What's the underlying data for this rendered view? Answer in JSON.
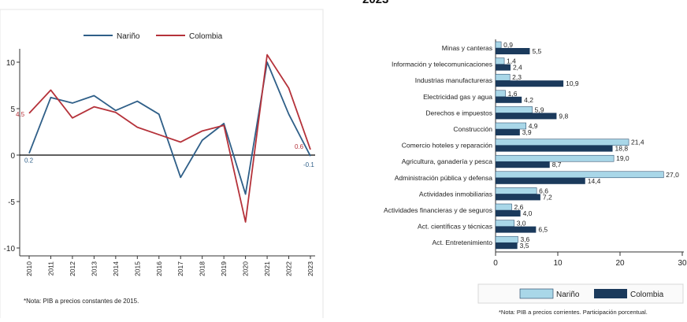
{
  "chart_data": [
    {
      "type": "line",
      "x": [
        "2010",
        "2011",
        "2012",
        "2013",
        "2014",
        "2015",
        "2016",
        "2017",
        "2018",
        "2019",
        "2020",
        "2021",
        "2022",
        "2023"
      ],
      "series": [
        {
          "name": "Nariño",
          "color": "#2f5f88",
          "values": [
            0.2,
            6.2,
            5.6,
            6.4,
            4.8,
            5.8,
            4.4,
            -2.4,
            1.6,
            3.4,
            -4.2,
            10.0,
            4.4,
            -0.1
          ]
        },
        {
          "name": "Colombia",
          "color": "#b5323a",
          "values": [
            4.5,
            7.0,
            4.0,
            5.2,
            4.6,
            3.0,
            2.2,
            1.4,
            2.6,
            3.2,
            -7.2,
            10.8,
            7.2,
            0.6
          ]
        }
      ],
      "ylim": [
        -10,
        12
      ],
      "yticks": [
        "10",
        "5",
        "0",
        "-5",
        "-10"
      ],
      "point_labels": {
        "narino_start": "0.2",
        "colombia_start": "4.5",
        "colombia_end": "0.6",
        "narino_end": "-0.1"
      },
      "legend_position": "top",
      "note": "*Nota: PIB a precios constantes de 2015."
    },
    {
      "type": "bar",
      "orientation": "horizontal",
      "categories": [
        "Minas y canteras",
        "Información y telecomunicaciones",
        "Industrias manufactureras",
        "Electricidad gas y agua",
        "Derechos e impuestos",
        "Construcción",
        "Comercio hoteles y reparación",
        "Agricultura, ganadería y pesca",
        "Administración pública y defensa",
        "Actividades inmobiliarias",
        "Actividades financieras y de seguros",
        "Act. científicas y técnicas",
        "Act. Entretenimiento"
      ],
      "series": [
        {
          "name": "Nariño",
          "color": "#a9d7e8",
          "values": [
            0.9,
            1.4,
            2.3,
            1.6,
            5.9,
            4.9,
            21.4,
            19.0,
            27.0,
            6.6,
            2.6,
            3.0,
            3.6
          ],
          "labels": [
            "0,9",
            "1,4",
            "2,3",
            "1,6",
            "5,9",
            "4,9",
            "21,4",
            "19,0",
            "27,0",
            "6,6",
            "2,6",
            "3,0",
            "3,6"
          ]
        },
        {
          "name": "Colombia",
          "color": "#1b3a5c",
          "values": [
            5.5,
            2.4,
            10.9,
            4.2,
            9.8,
            3.9,
            18.8,
            8.7,
            14.4,
            7.2,
            4.0,
            6.5,
            3.5
          ],
          "labels": [
            "5,5",
            "2,4",
            "10,9",
            "4,2",
            "9,8",
            "3,9",
            "18,8",
            "8,7",
            "14,4",
            "7,2",
            "4,0",
            "6,5",
            "3,5"
          ]
        }
      ],
      "xlim": [
        0,
        30
      ],
      "xticks": [
        "0",
        "10",
        "20",
        "30"
      ],
      "legend_position": "bottom",
      "note": "*Nota: PIB a precios corrientes. Participación porcentual."
    }
  ],
  "header_fragment": "2023"
}
